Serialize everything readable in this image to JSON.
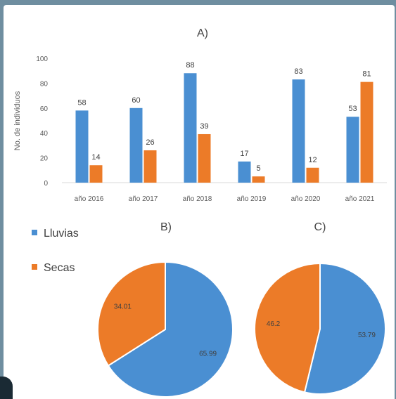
{
  "colors": {
    "lluvias": "#4a8fd2",
    "secas": "#ec7b28",
    "axis": "#d9d9d9",
    "text": "#595959"
  },
  "legend": {
    "items": [
      "Lluvias",
      "Secas"
    ]
  },
  "chart_data": [
    {
      "type": "bar",
      "title": "A)",
      "ylabel": "No. de individuos",
      "categories": [
        "año 2016",
        "año 2017",
        "año 2018",
        "año 2019",
        "año 2020",
        "año 2021"
      ],
      "ylim": [
        0,
        100
      ],
      "yticks": [
        0,
        20,
        40,
        60,
        80,
        100
      ],
      "series": [
        {
          "name": "Lluvias",
          "values": [
            58,
            60,
            88,
            17,
            83,
            53
          ]
        },
        {
          "name": "Secas",
          "values": [
            14,
            26,
            39,
            5,
            12,
            81
          ]
        }
      ]
    },
    {
      "type": "pie",
      "title": "B)",
      "labels": [
        "Lluvias",
        "Secas"
      ],
      "values": [
        65.99,
        34.01
      ],
      "value_labels": [
        "65.99",
        "34.01"
      ]
    },
    {
      "type": "pie",
      "title": "C)",
      "labels": [
        "Lluvias",
        "Secas"
      ],
      "values": [
        53.79,
        46.2
      ],
      "value_labels": [
        "53.79",
        "46.2"
      ]
    }
  ]
}
